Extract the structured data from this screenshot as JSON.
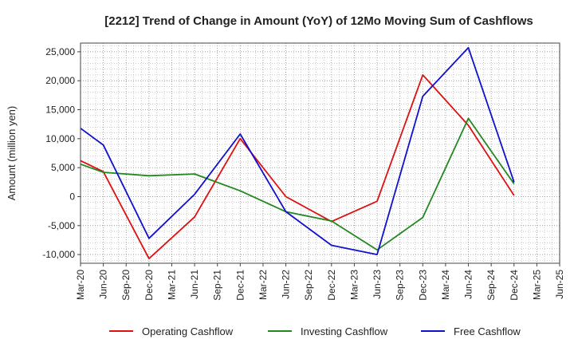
{
  "chart_data": {
    "type": "line",
    "title": "[2212]  Trend of Change in Amount (YoY) of 12Mo Moving Sum of Cashflows",
    "xlabel": "",
    "ylabel": "Amount (million yen)",
    "ylim": [
      -11500,
      26500
    ],
    "yticks": [
      -10000,
      -5000,
      0,
      5000,
      10000,
      15000,
      20000,
      25000
    ],
    "ytick_labels": [
      "-10,000",
      "-5,000",
      "0",
      "5,000",
      "10,000",
      "15,000",
      "20,000",
      "25,000"
    ],
    "categories": [
      "Mar-20",
      "Jun-20",
      "Sep-20",
      "Dec-20",
      "Mar-21",
      "Jun-21",
      "Sep-21",
      "Dec-21",
      "Mar-22",
      "Jun-22",
      "Sep-22",
      "Dec-22",
      "Mar-23",
      "Jun-23",
      "Sep-23",
      "Dec-23",
      "Mar-24",
      "Jun-24",
      "Sep-24",
      "Dec-24",
      "Mar-25",
      "Jun-25"
    ],
    "grid": true,
    "legend_position": "bottom",
    "series": [
      {
        "name": "Operating Cashflow",
        "color": "#dd1111",
        "values": [
          6200,
          4300,
          null,
          -10700,
          null,
          -3500,
          null,
          10000,
          null,
          0,
          null,
          -4300,
          null,
          -800,
          null,
          21000,
          null,
          12300,
          null,
          200,
          null,
          null
        ]
      },
      {
        "name": "Investing Cashflow",
        "color": "#228822",
        "values": [
          5600,
          4200,
          null,
          3600,
          null,
          3900,
          null,
          1000,
          null,
          -2600,
          null,
          -4200,
          null,
          -9200,
          null,
          -3600,
          null,
          13500,
          null,
          2200,
          null,
          null
        ]
      },
      {
        "name": "Free Cashflow",
        "color": "#1111cc",
        "values": [
          11800,
          8900,
          null,
          -7200,
          null,
          400,
          null,
          10800,
          null,
          -2600,
          null,
          -8400,
          null,
          -10000,
          null,
          17300,
          null,
          25700,
          null,
          2500,
          null,
          null
        ]
      }
    ]
  }
}
